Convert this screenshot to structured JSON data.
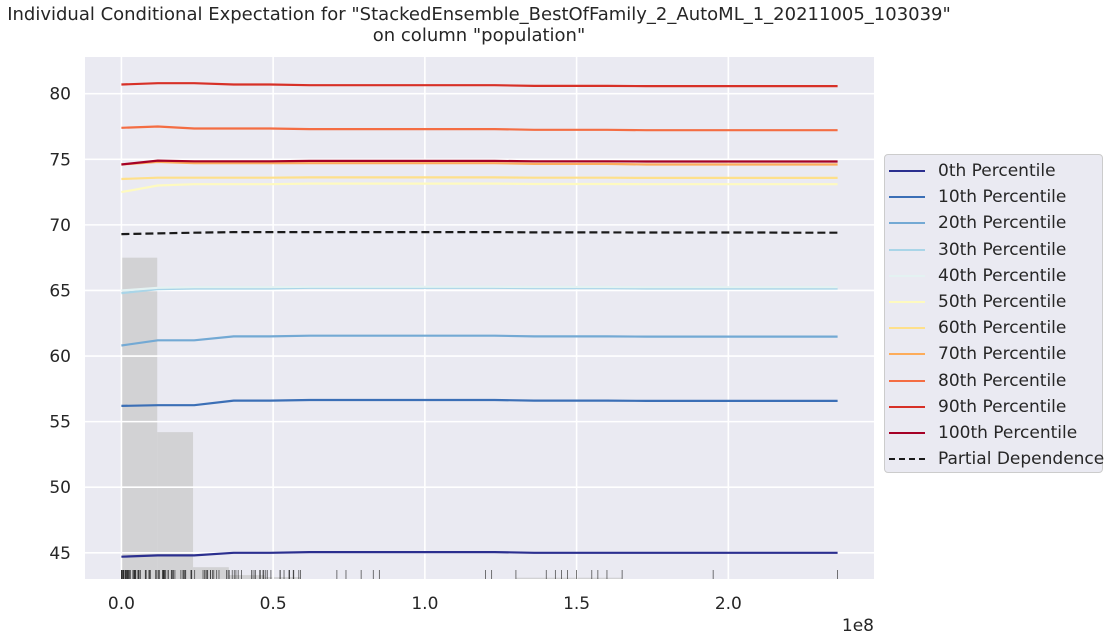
{
  "title": {
    "line1": "Individual Conditional Expectation for \"StackedEnsemble_BestOfFamily_2_AutoML_1_20211005_103039\"",
    "line2": "on column \"population\""
  },
  "chart_data": {
    "type": "line",
    "xlim": [
      -0.12,
      2.48
    ],
    "ylim": [
      43.0,
      82.8
    ],
    "x_ticks": [
      0.0,
      0.5,
      1.0,
      1.5,
      2.0
    ],
    "x_tick_labels": [
      "0.0",
      "0.5",
      "1.0",
      "1.5",
      "2.0"
    ],
    "x_offset_label": "1e8",
    "y_ticks": [
      45,
      50,
      55,
      60,
      65,
      70,
      75,
      80
    ],
    "y_tick_labels": [
      "45",
      "50",
      "55",
      "60",
      "65",
      "70",
      "75",
      "80"
    ],
    "grid": true,
    "legend_position": "right",
    "x": [
      0.0,
      0.12,
      0.24,
      0.37,
      0.49,
      0.62,
      0.74,
      0.86,
      0.99,
      1.11,
      1.23,
      1.36,
      1.48,
      1.6,
      1.73,
      1.85,
      1.97,
      2.1,
      2.22,
      2.36
    ],
    "series": [
      {
        "name": "0th Percentile",
        "color": "#2b2f8f",
        "dashed": false,
        "values": [
          44.7,
          44.8,
          44.8,
          45.0,
          45.0,
          45.05,
          45.05,
          45.05,
          45.05,
          45.05,
          45.05,
          45.0,
          45.0,
          45.0,
          45.0,
          45.0,
          45.0,
          45.0,
          45.0,
          45.0
        ]
      },
      {
        "name": "10th Percentile",
        "color": "#3b6fb6",
        "dashed": false,
        "values": [
          56.2,
          56.25,
          56.25,
          56.6,
          56.6,
          56.65,
          56.65,
          56.65,
          56.65,
          56.65,
          56.65,
          56.6,
          56.6,
          56.6,
          56.58,
          56.58,
          56.58,
          56.58,
          56.58,
          56.58
        ]
      },
      {
        "name": "20th Percentile",
        "color": "#73a9d4",
        "dashed": false,
        "values": [
          60.8,
          61.2,
          61.2,
          61.5,
          61.5,
          61.55,
          61.55,
          61.55,
          61.55,
          61.55,
          61.55,
          61.5,
          61.5,
          61.5,
          61.48,
          61.48,
          61.48,
          61.48,
          61.48,
          61.48
        ]
      },
      {
        "name": "30th Percentile",
        "color": "#a9d5e8",
        "dashed": false,
        "values": [
          64.8,
          65.1,
          65.15,
          65.15,
          65.15,
          65.2,
          65.2,
          65.2,
          65.2,
          65.2,
          65.2,
          65.18,
          65.18,
          65.18,
          65.15,
          65.15,
          65.15,
          65.15,
          65.15,
          65.15
        ]
      },
      {
        "name": "40th Percentile",
        "color": "#e4f2f2",
        "dashed": false,
        "values": [
          65.0,
          65.2,
          65.25,
          65.25,
          65.25,
          65.28,
          65.28,
          65.28,
          65.28,
          65.28,
          65.28,
          65.26,
          65.26,
          65.26,
          65.25,
          65.25,
          65.25,
          65.25,
          65.25,
          65.25
        ]
      },
      {
        "name": "50th Percentile",
        "color": "#fefac0",
        "dashed": false,
        "values": [
          72.5,
          73.0,
          73.1,
          73.1,
          73.1,
          73.15,
          73.15,
          73.15,
          73.15,
          73.15,
          73.15,
          73.12,
          73.12,
          73.12,
          73.1,
          73.1,
          73.1,
          73.1,
          73.1,
          73.1
        ]
      },
      {
        "name": "60th Percentile",
        "color": "#fee08b",
        "dashed": false,
        "values": [
          73.5,
          73.6,
          73.6,
          73.6,
          73.6,
          73.62,
          73.62,
          73.62,
          73.62,
          73.62,
          73.62,
          73.6,
          73.6,
          73.6,
          73.58,
          73.58,
          73.58,
          73.58,
          73.58,
          73.58
        ]
      },
      {
        "name": "70th Percentile",
        "color": "#fdac5a",
        "dashed": false,
        "values": [
          74.6,
          74.8,
          74.7,
          74.7,
          74.7,
          74.7,
          74.7,
          74.7,
          74.7,
          74.7,
          74.7,
          74.65,
          74.65,
          74.65,
          74.6,
          74.6,
          74.6,
          74.6,
          74.6,
          74.6
        ]
      },
      {
        "name": "80th Percentile",
        "color": "#f46d43",
        "dashed": false,
        "values": [
          77.4,
          77.5,
          77.35,
          77.35,
          77.35,
          77.3,
          77.3,
          77.3,
          77.3,
          77.3,
          77.3,
          77.25,
          77.25,
          77.25,
          77.22,
          77.22,
          77.22,
          77.22,
          77.22,
          77.22
        ]
      },
      {
        "name": "90th Percentile",
        "color": "#d73027",
        "dashed": false,
        "values": [
          80.7,
          80.8,
          80.8,
          80.7,
          80.7,
          80.65,
          80.65,
          80.65,
          80.65,
          80.65,
          80.65,
          80.6,
          80.6,
          80.6,
          80.58,
          80.58,
          80.58,
          80.58,
          80.58,
          80.58
        ]
      },
      {
        "name": "100th Percentile",
        "color": "#a50026",
        "dashed": false,
        "values": [
          74.6,
          74.9,
          74.85,
          74.85,
          74.85,
          74.88,
          74.88,
          74.88,
          74.88,
          74.88,
          74.88,
          74.85,
          74.85,
          74.85,
          74.83,
          74.83,
          74.83,
          74.83,
          74.83,
          74.83
        ]
      },
      {
        "name": "Partial Dependence",
        "color": "#1a1a1a",
        "dashed": true,
        "values": [
          69.3,
          69.35,
          69.4,
          69.45,
          69.45,
          69.45,
          69.45,
          69.45,
          69.45,
          69.45,
          69.45,
          69.43,
          69.43,
          69.43,
          69.42,
          69.42,
          69.42,
          69.42,
          69.4,
          69.4
        ]
      }
    ],
    "histogram": {
      "color": "#c8c8c8",
      "bins": [
        {
          "x0": 0.0,
          "x1": 0.118,
          "top": 67.5
        },
        {
          "x0": 0.118,
          "x1": 0.236,
          "top": 54.2
        },
        {
          "x0": 0.236,
          "x1": 0.354,
          "top": 43.9
        },
        {
          "x0": 0.354,
          "x1": 0.472,
          "top": 43.3
        },
        {
          "x0": 0.472,
          "x1": 0.59,
          "top": 43.15
        },
        {
          "x0": 1.3,
          "x1": 1.65,
          "top": 43.1
        }
      ]
    },
    "rug": {
      "dense_from": 0.0,
      "dense_to": 0.6,
      "dense_count": 120,
      "sparse": [
        0.71,
        0.74,
        0.79,
        0.83,
        0.85,
        1.2,
        1.22,
        1.3,
        1.4,
        1.43,
        1.45,
        1.47,
        1.5,
        1.55,
        1.57,
        1.6,
        1.65,
        1.95,
        2.36
      ]
    }
  }
}
